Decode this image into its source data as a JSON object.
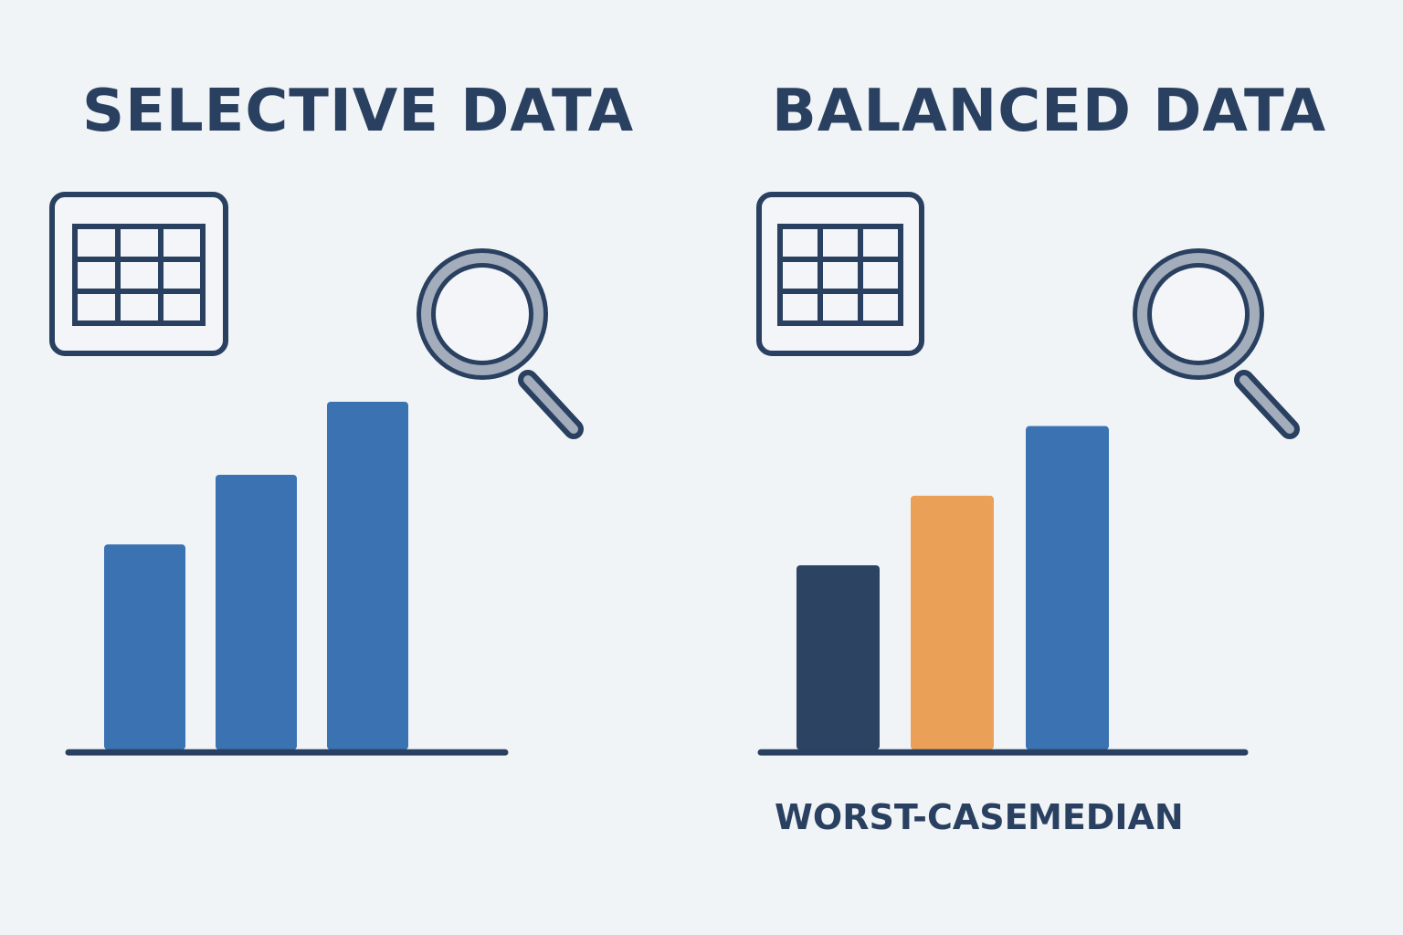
{
  "panels": {
    "left": {
      "title": "SELECTIVE DATA",
      "icons": [
        "table-icon",
        "magnifier-icon"
      ],
      "bars": [
        {
          "value": 0.59,
          "color": "#3a72b2"
        },
        {
          "value": 0.79,
          "color": "#3a72b2"
        },
        {
          "value": 1.0,
          "color": "#3a72b2"
        }
      ]
    },
    "right": {
      "title": "BALANCED DATA",
      "icons": [
        "table-icon",
        "magnifier-icon"
      ],
      "bars": [
        {
          "value": 0.53,
          "color": "#2c4462"
        },
        {
          "value": 0.73,
          "color": "#eba058"
        },
        {
          "value": 0.93,
          "color": "#3a72b2"
        }
      ],
      "labels": {
        "worst_case": "WORST-CASE",
        "median": "MEDIAN"
      }
    }
  },
  "colors": {
    "background": "#f0f4f7",
    "ink": "#2a4060",
    "blue": "#3a72b2",
    "navy": "#2c4462",
    "orange": "#eba058",
    "lens_ring": "#a3adbb"
  }
}
